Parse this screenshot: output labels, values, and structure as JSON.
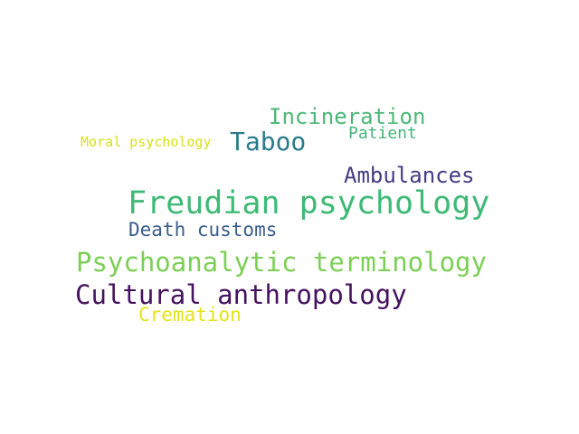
{
  "wordcloud": {
    "words": [
      {
        "text": "Incineration",
        "color": "#4cb878"
      },
      {
        "text": "Moral psychology",
        "color": "#d5e21a"
      },
      {
        "text": "Taboo",
        "color": "#2b7b8d"
      },
      {
        "text": "Patient",
        "color": "#44b47a"
      },
      {
        "text": "Ambulances",
        "color": "#433d84"
      },
      {
        "text": "Freudian psychology",
        "color": "#3eba76"
      },
      {
        "text": "Death customs",
        "color": "#3a5d8c"
      },
      {
        "text": "Psychoanalytic terminology",
        "color": "#7ccf55"
      },
      {
        "text": "Cultural anthropology",
        "color": "#45125f"
      },
      {
        "text": "Cremation",
        "color": "#e4e419"
      }
    ]
  }
}
